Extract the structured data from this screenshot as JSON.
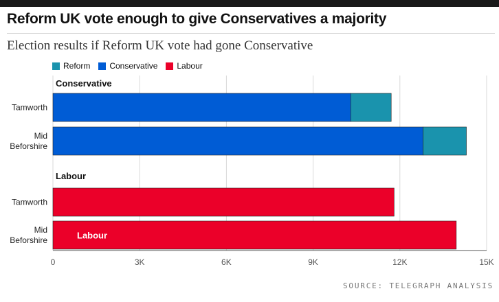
{
  "title": "Reform UK vote enough to give Conservatives a majority",
  "subtitle": "Election results if Reform UK vote had gone Conservative",
  "source": "SOURCE: TELEGRAPH ANALYSIS",
  "colors": {
    "Reform": "#1a93ad",
    "Conservative": "#005cd5",
    "Labour": "#eb0029",
    "grid": "#d9d9d9",
    "axis": "#555555"
  },
  "legend": [
    {
      "name": "Reform",
      "color": "#1a93ad"
    },
    {
      "name": "Conservative",
      "color": "#005cd5"
    },
    {
      "name": "Labour",
      "color": "#eb0029"
    }
  ],
  "chart_data": {
    "type": "bar",
    "orientation": "horizontal",
    "stacked": true,
    "xlim": [
      0,
      15000
    ],
    "xticks": [
      {
        "value": 0,
        "label": "0"
      },
      {
        "value": 3000,
        "label": "3K"
      },
      {
        "value": 6000,
        "label": "6K"
      },
      {
        "value": 9000,
        "label": "9K"
      },
      {
        "value": 12000,
        "label": "12K"
      },
      {
        "value": 15000,
        "label": "15K"
      }
    ],
    "grid": true,
    "legend_position": "top-left",
    "groups": [
      {
        "label": "Conservative",
        "bars": [
          {
            "label": "Tamworth",
            "segments": [
              {
                "series": "Conservative",
                "value": 10300
              },
              {
                "series": "Reform",
                "value": 1400
              }
            ]
          },
          {
            "label": "Mid\nBeforshire",
            "segments": [
              {
                "series": "Conservative",
                "value": 12800
              },
              {
                "series": "Reform",
                "value": 1500
              }
            ]
          }
        ]
      },
      {
        "label": "Labour",
        "bars": [
          {
            "label": "Tamworth",
            "segments": [
              {
                "series": "Labour",
                "value": 11800
              }
            ]
          },
          {
            "label": "Mid\nBeforshire",
            "segments": [
              {
                "series": "Labour",
                "value": 13950,
                "inner_label": "Labour"
              }
            ]
          }
        ]
      }
    ]
  }
}
